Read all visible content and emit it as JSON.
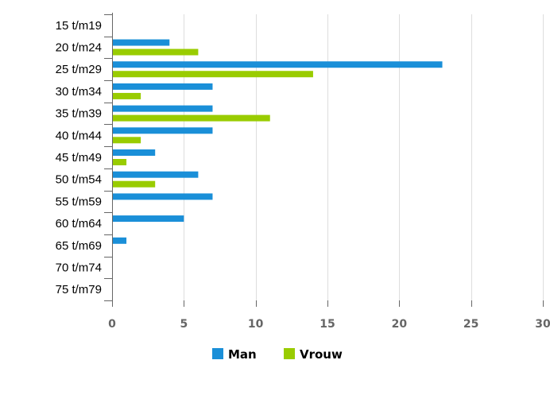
{
  "chart_data": {
    "type": "bar",
    "orientation": "horizontal",
    "categories": [
      "15 t/m19",
      "20 t/m24",
      "25 t/m29",
      "30 t/m34",
      "35 t/m39",
      "40 t/m44",
      "45 t/m49",
      "50 t/m54",
      "55 t/m59",
      "60 t/m64",
      "65 t/m69",
      "70 t/m74",
      "75 t/m79"
    ],
    "series": [
      {
        "name": "Man",
        "color": "#1a8fd8",
        "values": [
          0,
          4,
          23,
          7,
          7,
          7,
          3,
          6,
          7,
          5,
          1,
          0,
          0
        ]
      },
      {
        "name": "Vrouw",
        "color": "#99cc00",
        "values": [
          0,
          6,
          14,
          2,
          11,
          2,
          1,
          3,
          0,
          0,
          0,
          0,
          0
        ]
      }
    ],
    "xlim": [
      0,
      30
    ],
    "xticks": [
      0,
      5,
      10,
      15,
      20,
      25,
      30
    ],
    "grid": true,
    "legend_position": "bottom-center"
  }
}
